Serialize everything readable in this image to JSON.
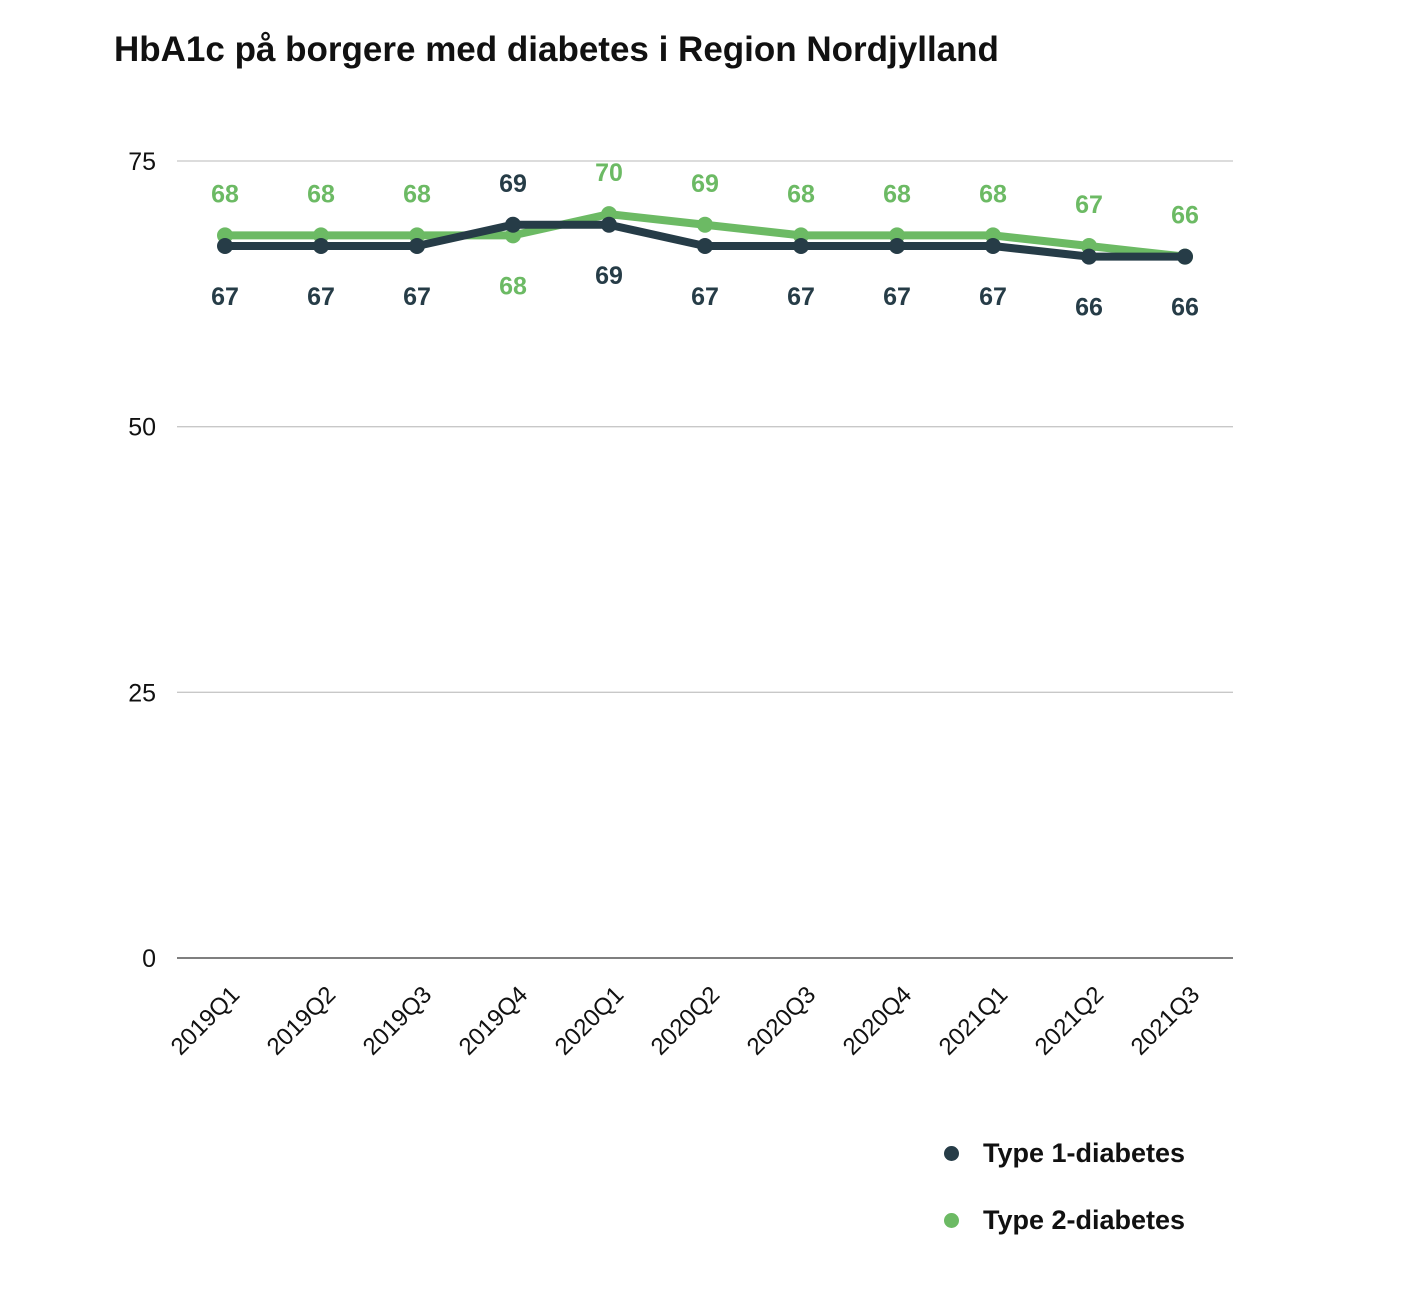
{
  "chart_data": {
    "type": "line",
    "title": "HbA1c på borgere med diabetes i Region Nordjylland",
    "xlabel": "",
    "ylabel": "",
    "categories": [
      "2019Q1",
      "2019Q2",
      "2019Q3",
      "2019Q4",
      "2020Q1",
      "2020Q2",
      "2020Q3",
      "2020Q4",
      "2021Q1",
      "2021Q2",
      "2021Q3"
    ],
    "ylim": [
      0,
      75
    ],
    "yticks": [
      0,
      25,
      50,
      75
    ],
    "grid": true,
    "legend_position": "bottom-right",
    "series": [
      {
        "name": "Type 1-diabetes",
        "color": "#263c47",
        "values": [
          67,
          67,
          67,
          69,
          69,
          67,
          67,
          67,
          67,
          66,
          66
        ],
        "labels": [
          "67",
          "67",
          "67",
          "69",
          "69",
          "67",
          "67",
          "67",
          "67",
          "66",
          "66"
        ]
      },
      {
        "name": "Type 2-diabetes",
        "color": "#6cba64",
        "values": [
          68,
          68,
          68,
          68,
          70,
          69,
          68,
          68,
          68,
          67,
          66
        ],
        "labels": [
          "68",
          "68",
          "68",
          "68",
          "70",
          "69",
          "68",
          "68",
          "68",
          "67",
          "66"
        ]
      }
    ]
  }
}
